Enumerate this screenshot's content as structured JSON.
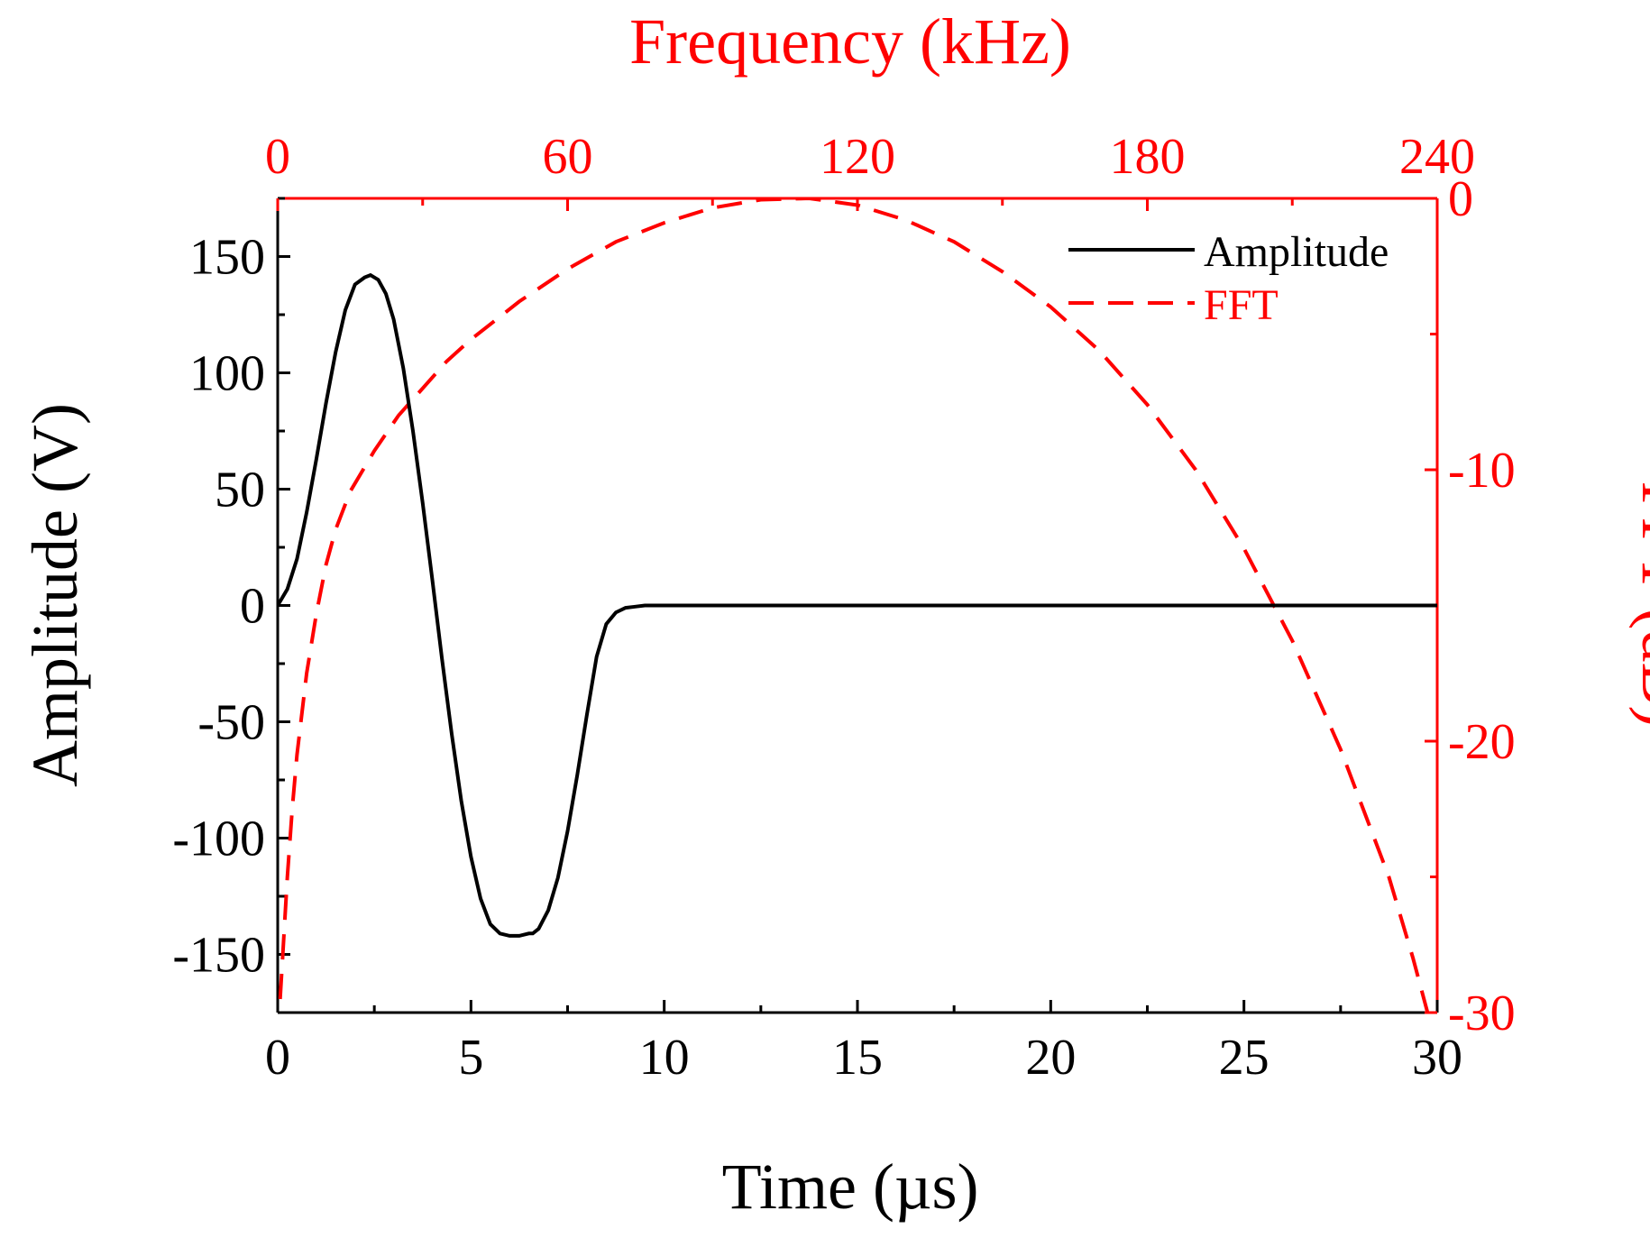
{
  "colors": {
    "amplitude": "#000000",
    "fft": "#ff0000",
    "axis_black": "#000000",
    "axis_red": "#ff0000",
    "background": "#ffffff"
  },
  "chart_data": {
    "type": "line",
    "title": "",
    "xlabel": "Time (µs)",
    "ylabel": "Amplitude (V)",
    "x2label": "Frequency (kHz)",
    "y2label": "FFT (dB)",
    "xlim": [
      0,
      30
    ],
    "ylim": [
      -175,
      175
    ],
    "x2lim": [
      0,
      240
    ],
    "y2lim": [
      -30,
      0
    ],
    "xticks": [
      0,
      5,
      10,
      15,
      20,
      25,
      30
    ],
    "xtick_labels": [
      "0",
      "5",
      "10",
      "15",
      "20",
      "25",
      "30"
    ],
    "yticks": [
      -150,
      -100,
      -50,
      0,
      50,
      100,
      150
    ],
    "ytick_labels": [
      "-150",
      "-100",
      "-50",
      "0",
      "50",
      "100",
      "150"
    ],
    "x2ticks": [
      0,
      60,
      120,
      180,
      240
    ],
    "x2tick_labels": [
      "0",
      "60",
      "120",
      "180",
      "240"
    ],
    "y2ticks": [
      -30,
      -20,
      -10,
      0
    ],
    "y2tick_labels": [
      "-30",
      "-20",
      "-10",
      "0"
    ],
    "grid": false,
    "legend_position": "top-right",
    "series": [
      {
        "name": "Amplitude",
        "axis": "bottom-left",
        "style": "solid",
        "color": "#000000",
        "x": [
          0,
          0.25,
          0.5,
          0.75,
          1.0,
          1.25,
          1.5,
          1.75,
          2.0,
          2.25,
          2.4,
          2.6,
          2.8,
          3.0,
          3.25,
          3.5,
          3.75,
          4.0,
          4.25,
          4.5,
          4.75,
          5.0,
          5.25,
          5.5,
          5.75,
          6.0,
          6.25,
          6.5,
          6.6,
          6.75,
          7.0,
          7.25,
          7.5,
          7.75,
          8.0,
          8.25,
          8.5,
          8.75,
          9.0,
          9.25,
          9.5,
          9.75,
          10.0,
          12.0,
          15.0,
          18.0,
          21.0,
          24.0,
          27.0,
          30.0
        ],
        "values": [
          0,
          7,
          20,
          40,
          63,
          87,
          109,
          127,
          138,
          141,
          142,
          140,
          134,
          123,
          102,
          75,
          44,
          11,
          -23,
          -55,
          -84,
          -108,
          -126,
          -137,
          -141,
          -142,
          -142,
          -141,
          -141,
          -139,
          -131,
          -117,
          -97,
          -73,
          -47,
          -22,
          -8,
          -3,
          -1,
          -0.5,
          0,
          0,
          0,
          0,
          0,
          0,
          0,
          0,
          0,
          0
        ]
      },
      {
        "name": "FFT",
        "axis": "top-right",
        "style": "dashed",
        "color": "#ff0000",
        "x": [
          0.5,
          1,
          2,
          3,
          4,
          6,
          8,
          10,
          12,
          15,
          20,
          25,
          30,
          35,
          40,
          50,
          60,
          70,
          80,
          90,
          100,
          110,
          120,
          130,
          140,
          150,
          160,
          170,
          180,
          190,
          200,
          210,
          220,
          230,
          235,
          238
        ],
        "values": [
          -29.5,
          -28,
          -25,
          -22.5,
          -20.5,
          -17.5,
          -15.3,
          -13.5,
          -12.2,
          -10.8,
          -9.3,
          -8.0,
          -7.0,
          -6.0,
          -5.2,
          -3.8,
          -2.6,
          -1.6,
          -0.9,
          -0.35,
          -0.05,
          0,
          -0.25,
          -0.8,
          -1.6,
          -2.7,
          -4.0,
          -5.6,
          -7.6,
          -10.0,
          -12.9,
          -16.3,
          -20.3,
          -25.0,
          -28.0,
          -30.0
        ]
      }
    ]
  }
}
